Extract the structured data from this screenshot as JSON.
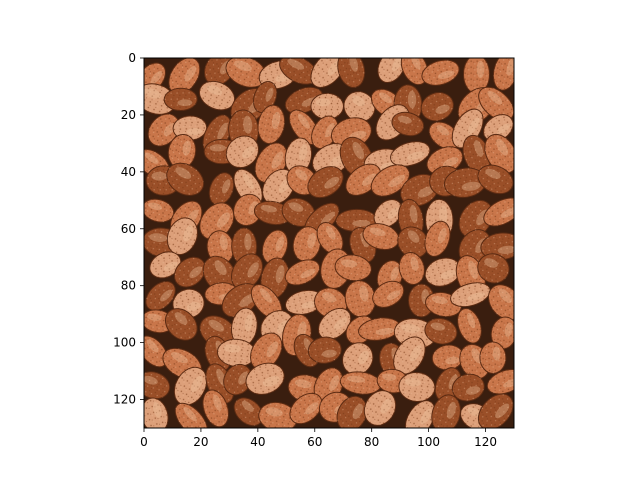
{
  "chart_data": {
    "type": "heatmap",
    "image_content": "pinto beans texture",
    "title": "",
    "xlabel": "",
    "ylabel": "",
    "xlim": [
      0,
      130
    ],
    "ylim": [
      130,
      0
    ],
    "x_ticks": [
      0,
      20,
      40,
      60,
      80,
      100,
      120
    ],
    "y_ticks": [
      0,
      20,
      40,
      60,
      80,
      100,
      120
    ],
    "x_tick_labels": [
      "0",
      "20",
      "40",
      "60",
      "80",
      "100",
      "120"
    ],
    "y_tick_labels": [
      "0",
      "20",
      "40",
      "60",
      "80",
      "100",
      "120"
    ],
    "grid": false,
    "colors": {
      "background": "#ffffff",
      "bean_base": "#c9764a",
      "bean_light": "#dda07a",
      "bean_dark": "#9a4f28",
      "gap": "#3a1e0f",
      "speckle": "#7a3a18"
    }
  }
}
